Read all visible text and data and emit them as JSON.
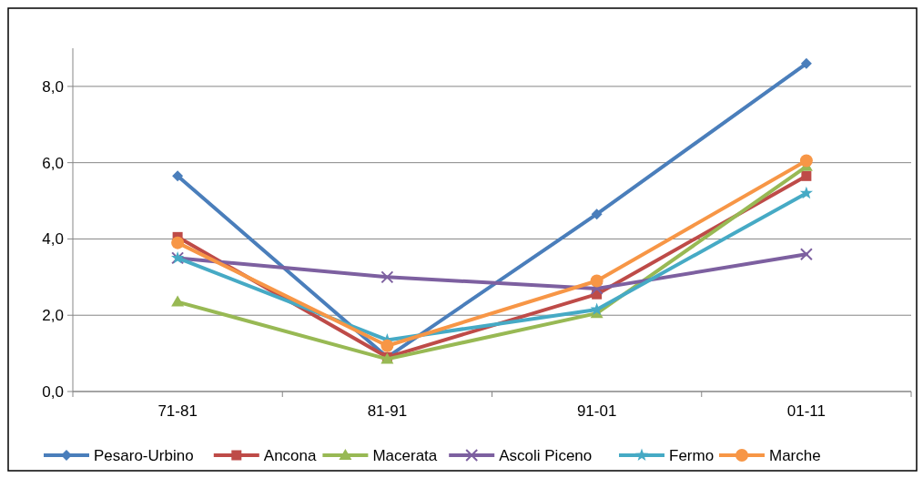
{
  "chart_data": {
    "type": "line",
    "categories": [
      "71-81",
      "81-91",
      "91-01",
      "01-11"
    ],
    "series": [
      {
        "name": "Pesaro-Urbino",
        "color": "#4a7ebb",
        "marker": "diamond",
        "values": [
          5.65,
          0.9,
          4.65,
          8.6
        ]
      },
      {
        "name": "Ancona",
        "color": "#be4b48",
        "marker": "square",
        "values": [
          4.05,
          0.9,
          2.55,
          5.65
        ]
      },
      {
        "name": "Macerata",
        "color": "#98b954",
        "marker": "triangle",
        "values": [
          2.35,
          0.85,
          2.05,
          5.9
        ]
      },
      {
        "name": "Ascoli Piceno",
        "color": "#7d60a0",
        "marker": "cross",
        "values": [
          3.5,
          3.0,
          2.7,
          3.6
        ]
      },
      {
        "name": "Fermo",
        "color": "#46aac5",
        "marker": "star",
        "values": [
          3.5,
          1.35,
          2.15,
          5.2
        ]
      },
      {
        "name": "Marche",
        "color": "#f79646",
        "marker": "circle",
        "values": [
          3.9,
          1.2,
          2.9,
          6.05
        ]
      }
    ],
    "ylim": [
      0,
      9
    ],
    "yticks": [
      {
        "value": 0,
        "label": "0,0"
      },
      {
        "value": 2,
        "label": "2,0"
      },
      {
        "value": 4,
        "label": "4,0"
      },
      {
        "value": 6,
        "label": "6,0"
      },
      {
        "value": 8,
        "label": "8,0"
      }
    ],
    "grid": "y",
    "legend": "bottom"
  }
}
